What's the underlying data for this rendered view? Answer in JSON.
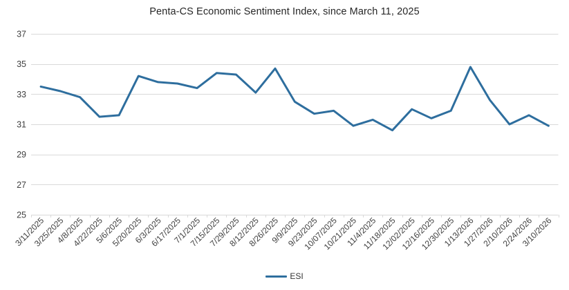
{
  "chart_data": {
    "type": "line",
    "title": "Penta-CS Economic Sentiment Index, since March 11, 2025",
    "categories": [
      "3/11/2025",
      "3/25/2025",
      "4/8/2025",
      "4/22/2025",
      "5/6/2025",
      "5/20/2025",
      "6/3/2025",
      "6/17/2025",
      "7/1/2025",
      "7/15/2025",
      "7/29/2025",
      "8/12/2025",
      "8/26/2025",
      "9/9/2025",
      "9/23/2025",
      "10/07/2025",
      "10/21/2025",
      "11/4/2025",
      "11/18/2025",
      "12/02/2025",
      "12/16/2025",
      "12/30/2025",
      "1/13/2026",
      "1/27/2026",
      "2/10/2026",
      "2/24/2026",
      "3/10/2026"
    ],
    "series": [
      {
        "name": "ESI",
        "color": "#2E6E9E",
        "values": [
          33.5,
          33.2,
          32.8,
          31.5,
          31.6,
          34.2,
          33.8,
          33.7,
          33.4,
          34.4,
          34.3,
          33.1,
          34.7,
          32.5,
          31.7,
          31.9,
          30.9,
          31.3,
          30.6,
          32.0,
          31.4,
          31.9,
          34.8,
          32.6,
          31.0,
          31.6,
          30.9
        ]
      }
    ],
    "xlabel": "",
    "ylabel": "",
    "ylim": [
      25,
      37
    ],
    "yticks": [
      37,
      35,
      33,
      31,
      29,
      27,
      25
    ],
    "grid": "horizontal",
    "legend_position": "bottom",
    "x_label_rotation": -45,
    "colors": {
      "gridline": "#D9D9D9",
      "axis": "#D9D9D9",
      "tick_label": "#404040",
      "title": "#262626",
      "background": "#FFFFFF"
    }
  }
}
